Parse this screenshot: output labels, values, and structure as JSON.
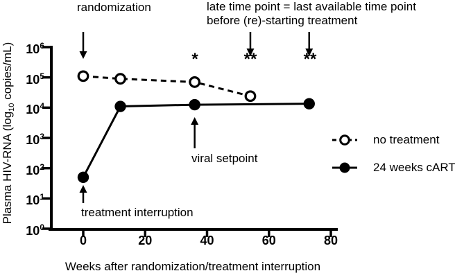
{
  "chart_data": {
    "type": "line",
    "xlabel": "Weeks after randomization/treatment interruption",
    "ylabel": {
      "prefix": "Plasma HIV-RNA (log",
      "sub": "10",
      "suffix": " copies/mL)"
    },
    "y_scale": "log10",
    "ylim": [
      1,
      1000000
    ],
    "xlim": [
      -10,
      82
    ],
    "x_ticks": [
      0,
      20,
      40,
      60,
      80
    ],
    "y_tick_base": "10",
    "y_tick_exponents": [
      0,
      1,
      2,
      3,
      4,
      5,
      6
    ],
    "grid": "off",
    "legend_position": "right",
    "series": [
      {
        "name": "no treatment",
        "line": "dashed",
        "marker": "open-circle",
        "x": [
          0,
          12,
          36,
          54
        ],
        "y": [
          110000,
          90000,
          70000,
          24000
        ]
      },
      {
        "name": "24 weeks cART",
        "line": "solid",
        "marker": "filled-circle",
        "x": [
          0,
          12,
          36,
          73
        ],
        "y": [
          50,
          11000,
          12500,
          13500
        ]
      }
    ]
  },
  "legend": {
    "items": [
      {
        "label": "no treatment"
      },
      {
        "label": "24 weeks cART"
      }
    ]
  },
  "annotations": {
    "randomization": "randomization",
    "late_time_point_line1": "late time point = last available time point",
    "late_time_point_line2": "before (re)-starting treatment",
    "viral_setpoint": "viral setpoint",
    "treatment_interruption": "treatment interruption",
    "significance": [
      {
        "week": 36,
        "symbol": "*"
      },
      {
        "week": 54,
        "symbol": "**"
      },
      {
        "week": 73,
        "symbol": "**"
      }
    ],
    "arrows": [
      {
        "name": "randomization-arrow",
        "week": 0,
        "y_from": 46,
        "y_to": 85
      },
      {
        "name": "late-time-point-arrow-1",
        "week": 54,
        "y_from": 46,
        "y_to": 81
      },
      {
        "name": "late-time-point-arrow-2",
        "week": 73,
        "y_from": 46,
        "y_to": 81
      },
      {
        "name": "viral-setpoint-arrow",
        "week": 36,
        "y_from": 214,
        "y_to": 169
      },
      {
        "name": "treatment-interruption-arrow",
        "week": 0,
        "y_from": 293,
        "y_to": 267
      }
    ]
  },
  "colors": {
    "ink": "#000000",
    "bg": "#ffffff"
  }
}
